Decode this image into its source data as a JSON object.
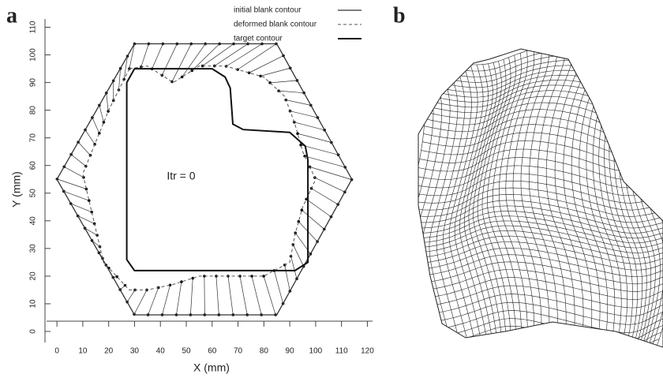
{
  "chart_data": {
    "type": "line",
    "panel_labels": [
      "a",
      "b"
    ],
    "xlabel": "X (mm)",
    "ylabel": "Y (mm)",
    "annotation": "Itr = 0",
    "xlim": [
      -4,
      122
    ],
    "ylim": [
      -4,
      113
    ],
    "xticks": [
      0,
      10,
      20,
      30,
      40,
      50,
      60,
      70,
      80,
      90,
      100,
      110,
      120
    ],
    "yticks": [
      0,
      10,
      20,
      30,
      40,
      50,
      60,
      70,
      80,
      90,
      100,
      110
    ],
    "legend": "upper right",
    "series": [
      {
        "name": "initial blank contour",
        "color": "#333333",
        "style": "solid",
        "width": 1.3,
        "x": [
          30,
          85,
          114,
          85,
          30,
          0,
          30
        ],
        "values": [
          104,
          104,
          55,
          6,
          6,
          55,
          104
        ]
      },
      {
        "name": "deformed blank contour",
        "color": "#555555",
        "style": "dashed",
        "width": 1,
        "x": [
          28,
          35,
          45,
          55,
          65,
          80,
          88,
          92,
          95,
          100,
          95,
          92,
          90,
          80,
          65,
          55,
          45,
          35,
          28,
          18,
          10,
          20,
          28
        ],
        "values": [
          95,
          96,
          90,
          96,
          96,
          92,
          85,
          75,
          65,
          55,
          45,
          35,
          25,
          20,
          20,
          20,
          17,
          15,
          15,
          25,
          57,
          80,
          95
        ]
      },
      {
        "name": "target contour",
        "color": "#111111",
        "style": "solid",
        "width": 2,
        "x": [
          27,
          30,
          60,
          65,
          67,
          68,
          72,
          90,
          96,
          97,
          97,
          92,
          30,
          27,
          27
        ],
        "values": [
          90,
          95,
          95,
          92,
          88,
          75,
          73,
          72,
          67,
          62,
          25,
          22,
          22,
          26,
          90
        ]
      }
    ]
  }
}
